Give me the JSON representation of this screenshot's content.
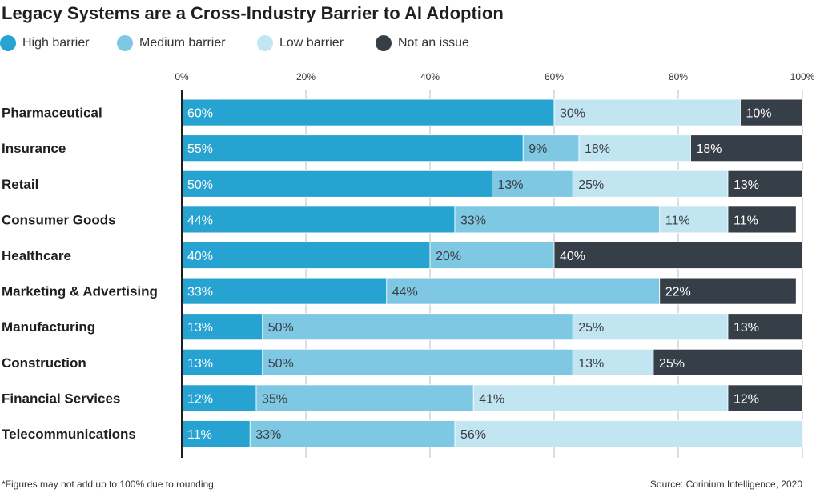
{
  "chart_data": {
    "type": "bar",
    "orientation": "horizontal",
    "stacked": true,
    "title": "Legacy Systems are a Cross-Industry Barrier to AI Adoption",
    "categories": [
      "Pharmaceutical",
      "Insurance",
      "Retail",
      "Consumer Goods",
      "Healthcare",
      "Marketing & Advertising",
      "Manufacturing",
      "Construction",
      "Financial Services",
      "Telecommunications"
    ],
    "series": [
      {
        "name": "High barrier",
        "color": "#27a3d1",
        "values": [
          60,
          55,
          50,
          44,
          40,
          33,
          13,
          13,
          12,
          11
        ]
      },
      {
        "name": "Medium barrier",
        "color": "#7ec8e3",
        "values": [
          0,
          9,
          13,
          33,
          20,
          44,
          50,
          50,
          35,
          33
        ]
      },
      {
        "name": "Low barrier",
        "color": "#c2e5f2",
        "values": [
          30,
          18,
          25,
          11,
          0,
          0,
          25,
          13,
          41,
          56
        ]
      },
      {
        "name": "Not an issue",
        "color": "#363e47",
        "values": [
          10,
          18,
          13,
          11,
          40,
          22,
          13,
          25,
          12,
          0
        ]
      }
    ],
    "xlim": [
      0,
      100
    ],
    "xticks": [
      "0%",
      "20%",
      "40%",
      "60%",
      "80%",
      "100%"
    ],
    "xtick_values": [
      0,
      20,
      40,
      60,
      80,
      100
    ],
    "value_suffix": "%",
    "grid": true,
    "legend_position": "top-left"
  },
  "footnote": "*Figures may not add up to 100% due to rounding",
  "source": "Source: Corinium Intelligence, 2020"
}
